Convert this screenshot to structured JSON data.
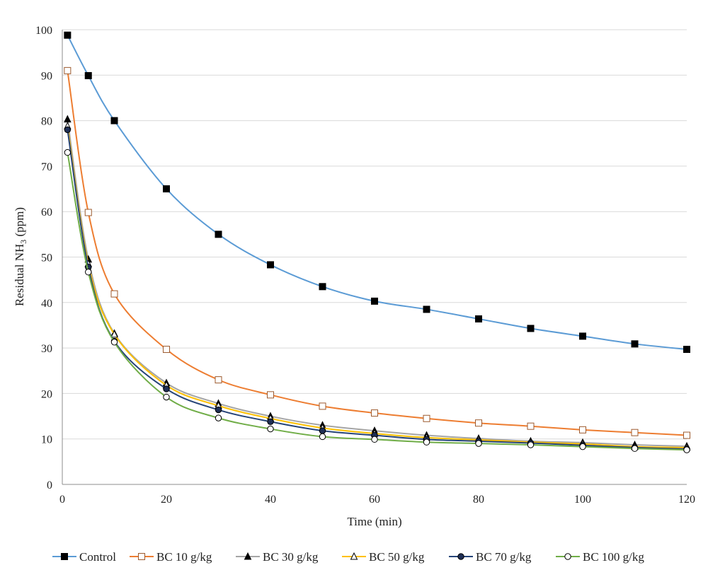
{
  "chart_data": {
    "type": "line",
    "title": "",
    "xlabel": "Time (min)",
    "ylabel_main": "Residual NH",
    "ylabel_sub": "3",
    "ylabel_tail": " (ppm)",
    "xlim": [
      0,
      120
    ],
    "ylim": [
      0,
      100
    ],
    "xticks": [
      0,
      20,
      40,
      60,
      80,
      100,
      120
    ],
    "yticks": [
      0,
      10,
      20,
      30,
      40,
      50,
      60,
      70,
      80,
      90,
      100
    ],
    "grid": "horizontal",
    "legend_position": "bottom",
    "x": [
      1,
      5,
      10,
      20,
      30,
      40,
      50,
      60,
      70,
      80,
      90,
      100,
      110,
      120
    ],
    "series": [
      {
        "name": "Control",
        "color": "#5B9BD5",
        "marker": "filled-square",
        "values": [
          98.8,
          89.9,
          80.0,
          65.0,
          55.0,
          48.3,
          43.5,
          40.3,
          38.5,
          36.4,
          34.3,
          32.6,
          30.9,
          29.7
        ]
      },
      {
        "name": "BC 10 g/kg",
        "color": "#ED7D31",
        "marker": "open-square",
        "values": [
          91.0,
          59.8,
          41.9,
          29.7,
          23.0,
          19.7,
          17.2,
          15.7,
          14.5,
          13.5,
          12.8,
          12.0,
          11.4,
          10.8
        ]
      },
      {
        "name": "BC 30 g/kg",
        "color": "#A5A5A5",
        "marker": "filled-triangle",
        "values": [
          80.3,
          49.5,
          33.2,
          22.3,
          17.8,
          15.0,
          13.0,
          11.8,
          10.8,
          10.1,
          9.5,
          9.2,
          8.7,
          8.4
        ]
      },
      {
        "name": "BC 50 g/kg",
        "color": "#FFC000",
        "marker": "open-triangle",
        "values": [
          78.8,
          48.5,
          33.0,
          21.8,
          17.3,
          14.5,
          12.4,
          11.2,
          10.3,
          9.8,
          9.3,
          8.9,
          8.3,
          8.1
        ]
      },
      {
        "name": "BC 70 g/kg",
        "color": "#264478",
        "marker": "filled-circle",
        "values": [
          78.0,
          47.8,
          31.5,
          21.0,
          16.4,
          13.8,
          11.8,
          10.8,
          9.9,
          9.5,
          9.1,
          8.6,
          8.1,
          7.8
        ]
      },
      {
        "name": "BC 100 g/kg",
        "color": "#70AD47",
        "marker": "open-circle",
        "values": [
          73.0,
          46.7,
          31.3,
          19.2,
          14.6,
          12.2,
          10.5,
          9.9,
          9.3,
          9.0,
          8.7,
          8.3,
          7.9,
          7.6
        ]
      }
    ]
  }
}
